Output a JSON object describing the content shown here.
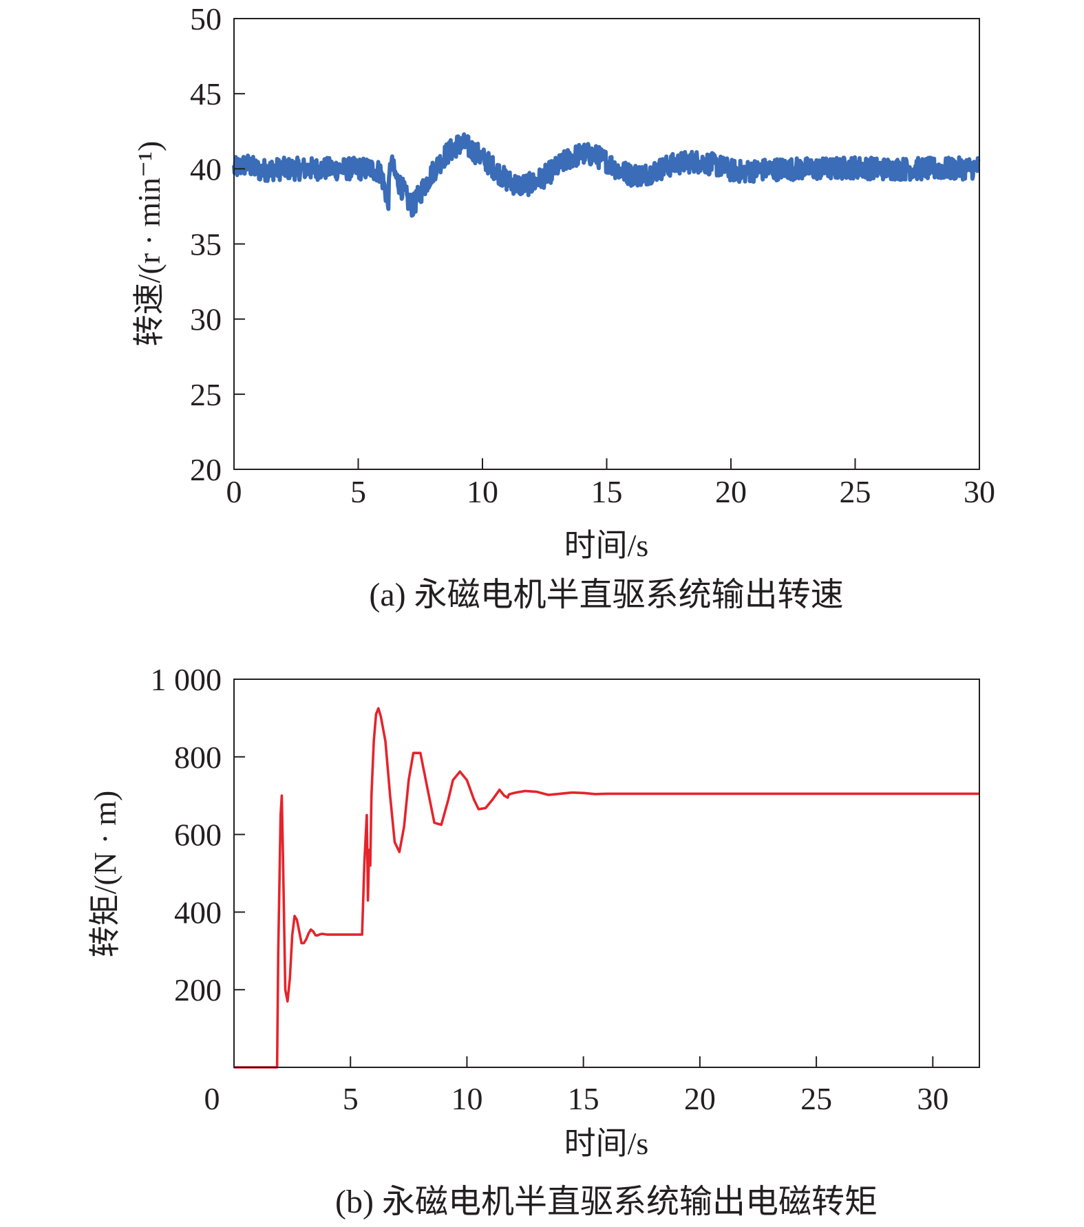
{
  "chart_data": [
    {
      "type": "line",
      "title": "(a) 永磁电机半直驱系统输出转速",
      "xlabel": "时间/s",
      "ylabel": "转速/(r · min⁻¹)",
      "xlim": [
        0,
        30
      ],
      "ylim": [
        20,
        50
      ],
      "xticks": [
        "0",
        "5",
        "10",
        "15",
        "20",
        "25",
        "30"
      ],
      "yticks": [
        "20",
        "25",
        "30",
        "35",
        "40",
        "45",
        "50"
      ],
      "grid": false,
      "series": [
        {
          "color": "#3a6cb8",
          "noise": 0.75,
          "x": [
            0,
            0.5,
            1,
            2,
            3,
            4,
            5,
            5.5,
            5.9,
            6.1,
            6.2,
            6.3,
            6.5,
            6.8,
            7.0,
            7.2,
            7.5,
            8.0,
            8.5,
            9.0,
            9.3,
            9.8,
            10.5,
            11.0,
            11.5,
            12.0,
            12.5,
            13.0,
            13.5,
            14.0,
            14.5,
            15.0,
            15.5,
            16.0,
            16.5,
            17.0,
            17.5,
            18.0,
            18.5,
            19.0,
            19.5,
            20.0,
            20.5,
            21.0,
            22.0,
            23.0,
            24.0,
            25.0,
            26.0,
            27.0,
            28.0,
            29.0,
            30.0
          ],
          "y": [
            40.0,
            40.3,
            39.9,
            40.0,
            40.0,
            40.0,
            40.0,
            40.0,
            39.8,
            38.5,
            37.6,
            40.5,
            39.5,
            38.6,
            37.9,
            37.5,
            38.4,
            39.8,
            40.9,
            41.6,
            41.6,
            41.0,
            40.0,
            39.2,
            38.9,
            39.0,
            39.5,
            40.1,
            40.7,
            41.0,
            40.9,
            40.5,
            39.9,
            39.6,
            39.6,
            39.9,
            40.2,
            40.4,
            40.5,
            40.4,
            40.2,
            39.9,
            39.8,
            39.9,
            40.0,
            40.0,
            40.0,
            40.1,
            40.0,
            40.0,
            40.0,
            40.0,
            40.1
          ]
        }
      ]
    },
    {
      "type": "line",
      "title": "(b) 永磁电机半直驱系统输出电磁转矩",
      "xlabel": "时间/s",
      "ylabel": "转矩/(N · m)",
      "xlim": [
        0,
        32
      ],
      "ylim": [
        0,
        1000
      ],
      "xticks": [
        "0",
        "5",
        "10",
        "15",
        "20",
        "25",
        "30"
      ],
      "yticks": [
        "200",
        "400",
        "600",
        "800",
        "1 000"
      ],
      "grid": false,
      "series": [
        {
          "color": "#e5242b",
          "noise": 0,
          "x": [
            0,
            1.85,
            1.9,
            2.0,
            2.05,
            2.1,
            2.2,
            2.3,
            2.4,
            2.5,
            2.6,
            2.7,
            2.8,
            2.9,
            3.0,
            3.1,
            3.2,
            3.3,
            3.4,
            3.5,
            3.6,
            3.7,
            3.8,
            4.0,
            4.3,
            4.6,
            5.0,
            5.3,
            5.5,
            5.6,
            5.7,
            5.75,
            5.8,
            5.85,
            5.9,
            6.0,
            6.1,
            6.2,
            6.3,
            6.5,
            6.7,
            6.9,
            7.1,
            7.3,
            7.5,
            7.7,
            8.0,
            8.3,
            8.6,
            8.9,
            9.2,
            9.4,
            9.7,
            10.0,
            10.3,
            10.5,
            10.8,
            11.1,
            11.4,
            11.6,
            11.75,
            11.8,
            11.9,
            12.1,
            12.5,
            13.0,
            13.5,
            14.0,
            14.5,
            15.0,
            15.5,
            16.0,
            17.0,
            18.0,
            20.0,
            25.0,
            30.0,
            32.0
          ],
          "y": [
            0,
            0,
            300,
            650,
            700,
            550,
            200,
            170,
            230,
            340,
            390,
            380,
            350,
            320,
            320,
            330,
            345,
            355,
            350,
            340,
            340,
            343,
            344,
            342,
            342,
            342,
            342,
            342,
            342,
            530,
            650,
            430,
            560,
            520,
            700,
            840,
            910,
            925,
            905,
            840,
            700,
            580,
            555,
            620,
            740,
            810,
            810,
            720,
            630,
            625,
            690,
            740,
            762,
            740,
            690,
            665,
            668,
            690,
            715,
            700,
            695,
            703,
            705,
            708,
            712,
            710,
            702,
            705,
            708,
            707,
            704,
            705,
            705,
            705,
            705,
            705,
            705,
            705
          ]
        }
      ]
    }
  ]
}
